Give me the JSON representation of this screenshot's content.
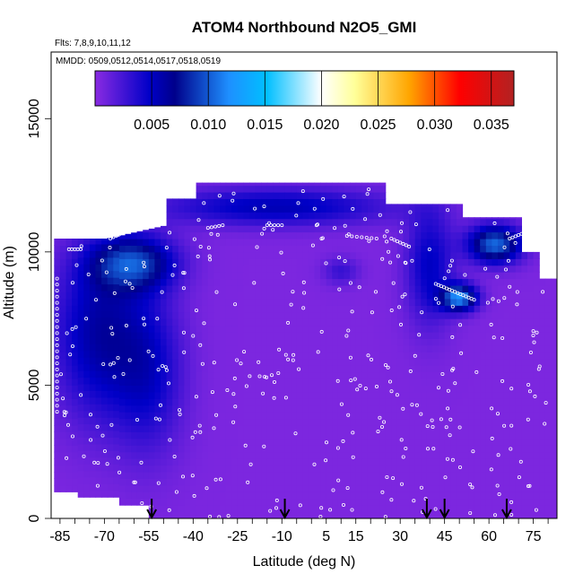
{
  "chart_data": {
    "type": "heatmap",
    "title": "ATOM4 Northbound N2O5_GMI",
    "subtitle_flights": "Flts: 7,8,9,10,11,12",
    "subtitle_dates": "MMDD: 0509,0512,0514,0517,0518,0519",
    "xlabel": "Latitude (deg N)",
    "ylabel": "Altitude (m)",
    "xlim": [
      -88,
      83
    ],
    "ylim": [
      0,
      17500
    ],
    "x_ticks": [
      -85,
      -70,
      -55,
      -40,
      -25,
      -10,
      5,
      15,
      30,
      45,
      60,
      75
    ],
    "y_ticks": [
      0,
      5000,
      10000,
      15000
    ],
    "colorbar": {
      "min": 0.0,
      "max": 0.037,
      "ticks": [
        0.005,
        0.01,
        0.015,
        0.02,
        0.025,
        0.03,
        0.035
      ],
      "tick_labels": [
        "0.005",
        "0.010",
        "0.015",
        "0.020",
        "0.025",
        "0.030",
        "0.035"
      ],
      "colors": [
        "#8a2be2",
        "#0000c8",
        "#00008b",
        "#1e90ff",
        "#00bfff",
        "#ffffff",
        "#ffff99",
        "#ffa500",
        "#ff0000",
        "#b22222"
      ],
      "stops": [
        0.0,
        0.13,
        0.19,
        0.32,
        0.41,
        0.54,
        0.62,
        0.75,
        0.87,
        1.0
      ]
    },
    "arrows_latitude": [
      -54,
      -9,
      39,
      45,
      66
    ],
    "field_description_regions": [
      {
        "region": "southern high latitudes",
        "lat_range": [
          -87,
          -50
        ],
        "alt_range": [
          3000,
          10500
        ],
        "value": 0.006
      },
      {
        "region": "southern upper troposphere",
        "lat_range": [
          -70,
          -38
        ],
        "alt_range": [
          8500,
          10500
        ],
        "value": 0.012
      },
      {
        "region": "central upper troposphere",
        "lat_range": [
          -40,
          25
        ],
        "alt_range": [
          11000,
          12500
        ],
        "value": 0.005
      },
      {
        "region": "northern midlatitude upper troposphere",
        "lat_range": [
          30,
          48
        ],
        "alt_range": [
          7500,
          11500
        ],
        "value": 0.006
      },
      {
        "region": "northern midlatitude maximum",
        "lat_range": [
          40,
          56
        ],
        "alt_range": [
          7800,
          8800
        ],
        "value": 0.016
      },
      {
        "region": "northern high latitude upper layer",
        "lat_range": [
          50,
          70
        ],
        "alt_range": [
          9500,
          11000
        ],
        "value": 0.012
      },
      {
        "region": "background lower/middle troposphere",
        "lat_range": [
          -85,
          82
        ],
        "alt_range": [
          0,
          7000
        ],
        "value": 0.0005
      }
    ]
  }
}
